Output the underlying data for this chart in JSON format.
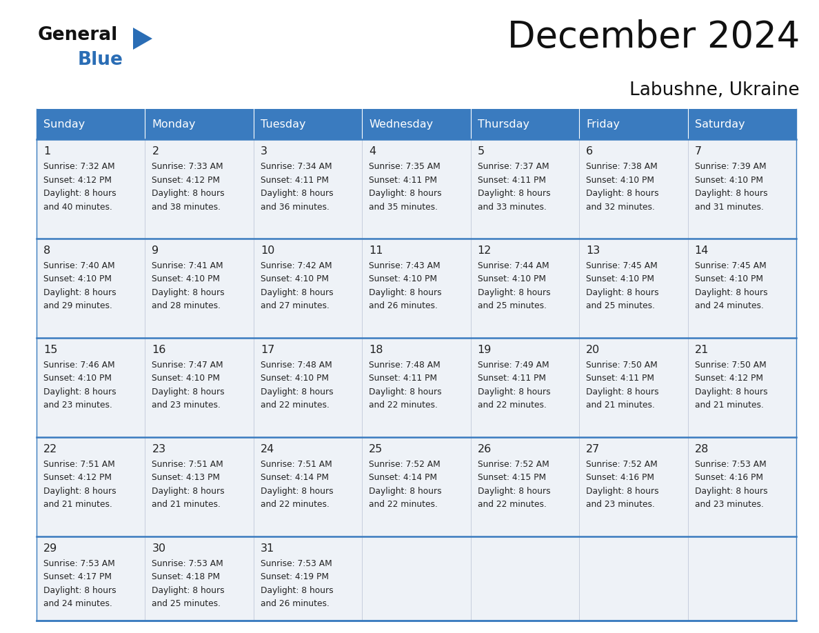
{
  "title": "December 2024",
  "subtitle": "Labushne, Ukraine",
  "header_color": "#3a7bbf",
  "header_text_color": "#ffffff",
  "cell_bg_color": "#eef2f7",
  "border_color": "#3a7bbf",
  "text_color": "#222222",
  "days_of_week": [
    "Sunday",
    "Monday",
    "Tuesday",
    "Wednesday",
    "Thursday",
    "Friday",
    "Saturday"
  ],
  "weeks": [
    [
      {
        "day": 1,
        "sunrise": "7:32 AM",
        "sunset": "4:12 PM",
        "daylight_min": "40"
      },
      {
        "day": 2,
        "sunrise": "7:33 AM",
        "sunset": "4:12 PM",
        "daylight_min": "38"
      },
      {
        "day": 3,
        "sunrise": "7:34 AM",
        "sunset": "4:11 PM",
        "daylight_min": "36"
      },
      {
        "day": 4,
        "sunrise": "7:35 AM",
        "sunset": "4:11 PM",
        "daylight_min": "35"
      },
      {
        "day": 5,
        "sunrise": "7:37 AM",
        "sunset": "4:11 PM",
        "daylight_min": "33"
      },
      {
        "day": 6,
        "sunrise": "7:38 AM",
        "sunset": "4:10 PM",
        "daylight_min": "32"
      },
      {
        "day": 7,
        "sunrise": "7:39 AM",
        "sunset": "4:10 PM",
        "daylight_min": "31"
      }
    ],
    [
      {
        "day": 8,
        "sunrise": "7:40 AM",
        "sunset": "4:10 PM",
        "daylight_min": "29"
      },
      {
        "day": 9,
        "sunrise": "7:41 AM",
        "sunset": "4:10 PM",
        "daylight_min": "28"
      },
      {
        "day": 10,
        "sunrise": "7:42 AM",
        "sunset": "4:10 PM",
        "daylight_min": "27"
      },
      {
        "day": 11,
        "sunrise": "7:43 AM",
        "sunset": "4:10 PM",
        "daylight_min": "26"
      },
      {
        "day": 12,
        "sunrise": "7:44 AM",
        "sunset": "4:10 PM",
        "daylight_min": "25"
      },
      {
        "day": 13,
        "sunrise": "7:45 AM",
        "sunset": "4:10 PM",
        "daylight_min": "25"
      },
      {
        "day": 14,
        "sunrise": "7:45 AM",
        "sunset": "4:10 PM",
        "daylight_min": "24"
      }
    ],
    [
      {
        "day": 15,
        "sunrise": "7:46 AM",
        "sunset": "4:10 PM",
        "daylight_min": "23"
      },
      {
        "day": 16,
        "sunrise": "7:47 AM",
        "sunset": "4:10 PM",
        "daylight_min": "23"
      },
      {
        "day": 17,
        "sunrise": "7:48 AM",
        "sunset": "4:10 PM",
        "daylight_min": "22"
      },
      {
        "day": 18,
        "sunrise": "7:48 AM",
        "sunset": "4:11 PM",
        "daylight_min": "22"
      },
      {
        "day": 19,
        "sunrise": "7:49 AM",
        "sunset": "4:11 PM",
        "daylight_min": "22"
      },
      {
        "day": 20,
        "sunrise": "7:50 AM",
        "sunset": "4:11 PM",
        "daylight_min": "21"
      },
      {
        "day": 21,
        "sunrise": "7:50 AM",
        "sunset": "4:12 PM",
        "daylight_min": "21"
      }
    ],
    [
      {
        "day": 22,
        "sunrise": "7:51 AM",
        "sunset": "4:12 PM",
        "daylight_min": "21"
      },
      {
        "day": 23,
        "sunrise": "7:51 AM",
        "sunset": "4:13 PM",
        "daylight_min": "21"
      },
      {
        "day": 24,
        "sunrise": "7:51 AM",
        "sunset": "4:14 PM",
        "daylight_min": "22"
      },
      {
        "day": 25,
        "sunrise": "7:52 AM",
        "sunset": "4:14 PM",
        "daylight_min": "22"
      },
      {
        "day": 26,
        "sunrise": "7:52 AM",
        "sunset": "4:15 PM",
        "daylight_min": "22"
      },
      {
        "day": 27,
        "sunrise": "7:52 AM",
        "sunset": "4:16 PM",
        "daylight_min": "23"
      },
      {
        "day": 28,
        "sunrise": "7:53 AM",
        "sunset": "4:16 PM",
        "daylight_min": "23"
      }
    ],
    [
      {
        "day": 29,
        "sunrise": "7:53 AM",
        "sunset": "4:17 PM",
        "daylight_min": "24"
      },
      {
        "day": 30,
        "sunrise": "7:53 AM",
        "sunset": "4:18 PM",
        "daylight_min": "25"
      },
      {
        "day": 31,
        "sunrise": "7:53 AM",
        "sunset": "4:19 PM",
        "daylight_min": "26"
      },
      null,
      null,
      null,
      null
    ]
  ]
}
